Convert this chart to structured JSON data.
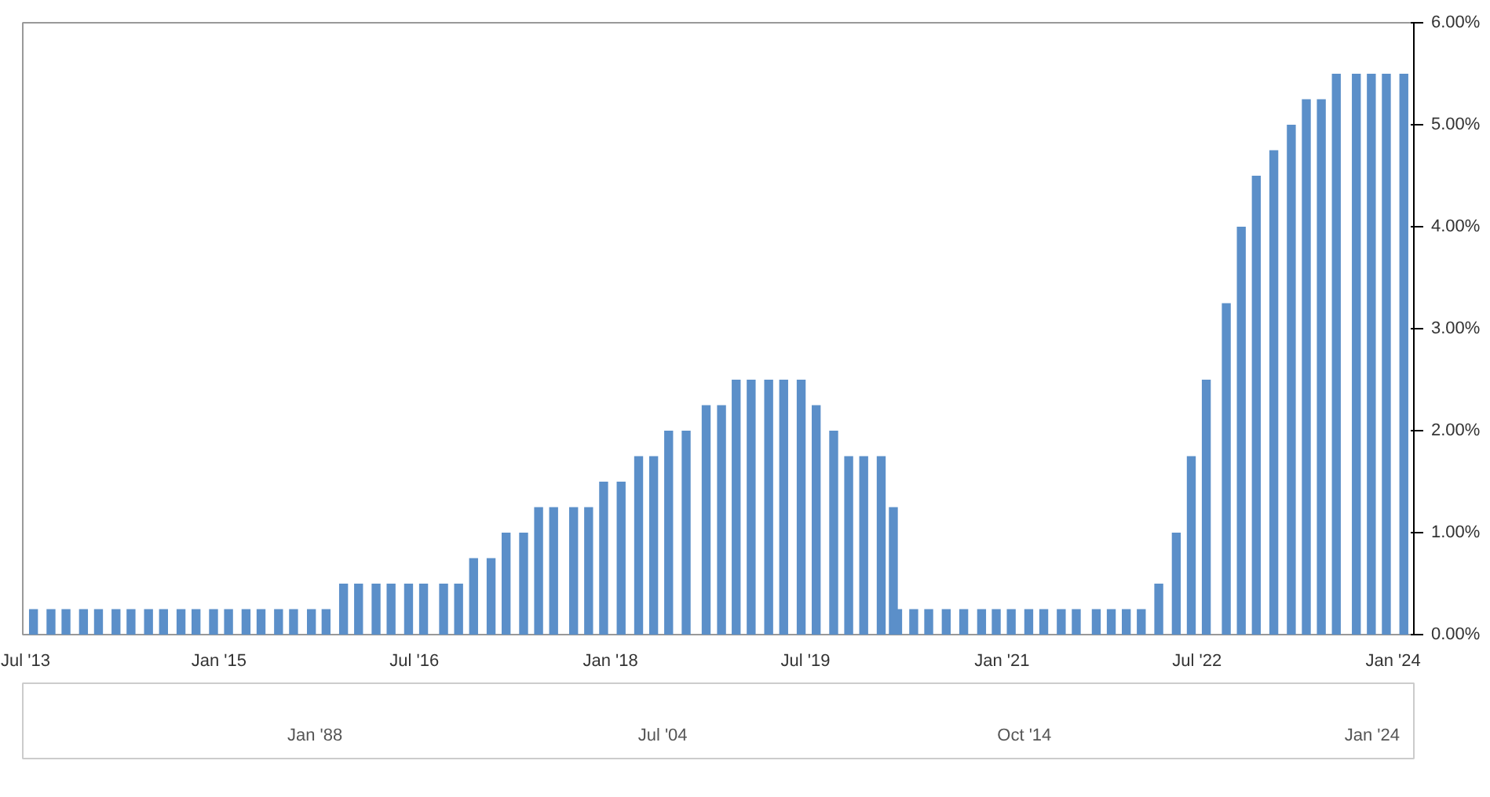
{
  "chart_data": {
    "type": "bar",
    "color": "#5b8fc9",
    "x": [
      "2013-07-31",
      "2013-09-18",
      "2013-10-30",
      "2013-12-18",
      "2014-01-29",
      "2014-03-19",
      "2014-04-30",
      "2014-06-18",
      "2014-07-30",
      "2014-09-17",
      "2014-10-29",
      "2014-12-17",
      "2015-01-28",
      "2015-03-18",
      "2015-04-29",
      "2015-06-17",
      "2015-07-29",
      "2015-09-17",
      "2015-10-28",
      "2015-12-16",
      "2016-01-27",
      "2016-03-16",
      "2016-04-27",
      "2016-06-15",
      "2016-07-27",
      "2016-09-21",
      "2016-11-02",
      "2016-12-14",
      "2017-02-01",
      "2017-03-15",
      "2017-05-03",
      "2017-06-14",
      "2017-07-26",
      "2017-09-20",
      "2017-11-01",
      "2017-12-13",
      "2018-01-31",
      "2018-03-21",
      "2018-05-02",
      "2018-06-13",
      "2018-08-01",
      "2018-09-26",
      "2018-11-08",
      "2018-12-19",
      "2019-01-30",
      "2019-03-20",
      "2019-05-01",
      "2019-06-19",
      "2019-07-31",
      "2019-09-18",
      "2019-10-30",
      "2019-12-11",
      "2020-01-29",
      "2020-03-03",
      "2020-03-15",
      "2020-04-29",
      "2020-06-10",
      "2020-07-29",
      "2020-09-16",
      "2020-11-05",
      "2020-12-16",
      "2021-01-27",
      "2021-03-17",
      "2021-04-28",
      "2021-06-16",
      "2021-07-28",
      "2021-09-22",
      "2021-11-03",
      "2021-12-15",
      "2022-01-26",
      "2022-03-16",
      "2022-05-04",
      "2022-06-15",
      "2022-07-27",
      "2022-09-21",
      "2022-11-02",
      "2022-12-14",
      "2023-02-01",
      "2023-03-22",
      "2023-05-03",
      "2023-06-14",
      "2023-07-26",
      "2023-09-20",
      "2023-11-01",
      "2023-12-13",
      "2024-01-31"
    ],
    "values": [
      0.25,
      0.25,
      0.25,
      0.25,
      0.25,
      0.25,
      0.25,
      0.25,
      0.25,
      0.25,
      0.25,
      0.25,
      0.25,
      0.25,
      0.25,
      0.25,
      0.25,
      0.25,
      0.25,
      0.5,
      0.5,
      0.5,
      0.5,
      0.5,
      0.5,
      0.5,
      0.5,
      0.75,
      0.75,
      1.0,
      1.0,
      1.25,
      1.25,
      1.25,
      1.25,
      1.5,
      1.5,
      1.75,
      1.75,
      2.0,
      2.0,
      2.25,
      2.25,
      2.5,
      2.5,
      2.5,
      2.5,
      2.5,
      2.25,
      2.0,
      1.75,
      1.75,
      1.75,
      1.25,
      0.25,
      0.25,
      0.25,
      0.25,
      0.25,
      0.25,
      0.25,
      0.25,
      0.25,
      0.25,
      0.25,
      0.25,
      0.25,
      0.25,
      0.25,
      0.25,
      0.5,
      1.0,
      1.75,
      2.5,
      3.25,
      4.0,
      4.5,
      4.75,
      5.0,
      5.25,
      5.25,
      5.5,
      5.5,
      5.5,
      5.5,
      5.5
    ],
    "xlim": [
      "2013-07-01",
      "2024-02-28"
    ],
    "xticks": [
      {
        "value": "2013-07-01",
        "label": "Jul '13"
      },
      {
        "value": "2015-01-01",
        "label": "Jan '15"
      },
      {
        "value": "2016-07-01",
        "label": "Jul '16"
      },
      {
        "value": "2018-01-01",
        "label": "Jan '18"
      },
      {
        "value": "2019-07-01",
        "label": "Jul '19"
      },
      {
        "value": "2021-01-01",
        "label": "Jan '21"
      },
      {
        "value": "2022-07-01",
        "label": "Jul '22"
      },
      {
        "value": "2024-01-01",
        "label": "Jan '24"
      }
    ],
    "ylim": [
      0,
      6
    ],
    "yticks": [
      {
        "value": 0,
        "label": "0.00%"
      },
      {
        "value": 1,
        "label": "1.00%"
      },
      {
        "value": 2,
        "label": "2.00%"
      },
      {
        "value": 3,
        "label": "3.00%"
      },
      {
        "value": 4,
        "label": "4.00%"
      },
      {
        "value": 5,
        "label": "5.00%"
      },
      {
        "value": 6,
        "label": "6.00%"
      }
    ],
    "grid": false,
    "annotations": [
      "Jan '88",
      "Jul '04",
      "Oct '14",
      "Jan '24"
    ]
  }
}
